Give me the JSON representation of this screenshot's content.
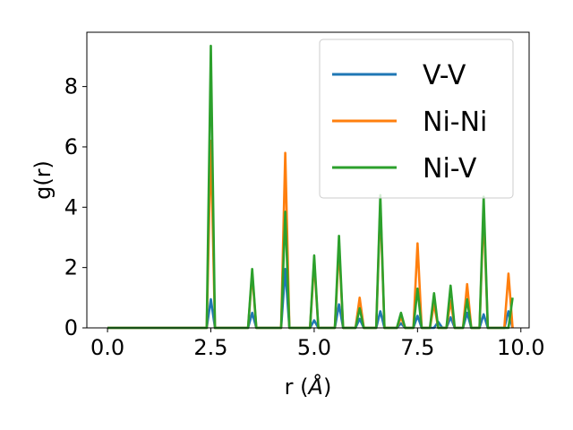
{
  "chart_data": {
    "type": "line",
    "title": "",
    "xlabel": "r (",
    "xlabel_unit": "Å",
    "xlabel_close": ")",
    "ylabel": "g(r)",
    "xlim": [
      -0.5,
      10.2
    ],
    "ylim": [
      0,
      9.8
    ],
    "xticks": [
      0.0,
      2.5,
      5.0,
      7.5,
      10.0
    ],
    "xtick_labels": [
      "0.0",
      "2.5",
      "5.0",
      "7.5",
      "10.0"
    ],
    "yticks": [
      0,
      2,
      4,
      6,
      8
    ],
    "ytick_labels": [
      "0",
      "2",
      "4",
      "6",
      "8"
    ],
    "grid": false,
    "legend_position": "top-right",
    "x_step": 0.1,
    "x_end": 9.8,
    "series": [
      {
        "name": "V-V",
        "color": "#1f77b4",
        "peaks": [
          [
            2.5,
            0.95
          ],
          [
            3.5,
            0.5
          ],
          [
            4.3,
            1.95
          ],
          [
            5.0,
            0.25
          ],
          [
            5.6,
            0.78
          ],
          [
            6.1,
            0.3
          ],
          [
            6.6,
            0.55
          ],
          [
            7.1,
            0.15
          ],
          [
            7.5,
            0.4
          ],
          [
            8.0,
            0.2
          ],
          [
            8.3,
            0.35
          ],
          [
            8.7,
            0.5
          ],
          [
            9.1,
            0.45
          ],
          [
            9.7,
            0.55
          ]
        ]
      },
      {
        "name": "Ni-Ni",
        "color": "#ff7f0e",
        "peaks": [
          [
            2.5,
            6.2
          ],
          [
            3.5,
            1.8
          ],
          [
            4.3,
            5.8
          ],
          [
            5.0,
            2.2
          ],
          [
            5.6,
            2.7
          ],
          [
            6.1,
            1.0
          ],
          [
            6.6,
            4.1
          ],
          [
            7.1,
            0.35
          ],
          [
            7.5,
            2.8
          ],
          [
            7.9,
            0.8
          ],
          [
            8.3,
            0.9
          ],
          [
            8.7,
            1.45
          ],
          [
            9.1,
            3.9
          ],
          [
            9.7,
            1.8
          ]
        ]
      },
      {
        "name": "Ni-V",
        "color": "#2ca02c",
        "peaks": [
          [
            2.5,
            9.35
          ],
          [
            3.5,
            1.95
          ],
          [
            4.3,
            3.85
          ],
          [
            5.0,
            2.4
          ],
          [
            5.6,
            3.05
          ],
          [
            6.1,
            0.65
          ],
          [
            6.6,
            4.4
          ],
          [
            7.1,
            0.5
          ],
          [
            7.5,
            1.3
          ],
          [
            7.9,
            1.15
          ],
          [
            8.3,
            1.4
          ],
          [
            8.7,
            0.95
          ],
          [
            9.1,
            4.35
          ],
          [
            9.8,
            1.0
          ]
        ]
      }
    ]
  }
}
